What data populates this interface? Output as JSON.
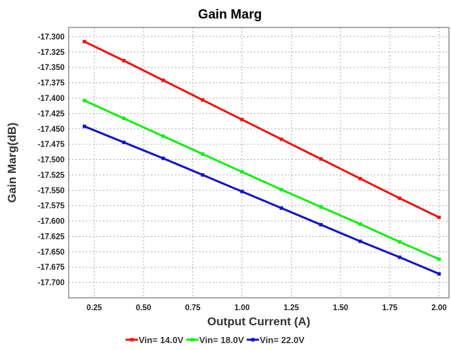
{
  "chart_data": {
    "type": "line",
    "title": "Gain Marg",
    "xlabel": "Output Current (A)",
    "ylabel": "Gain Marg(dB)",
    "xlim": [
      0.12,
      2.05
    ],
    "ylim": [
      -17.725,
      -17.285
    ],
    "x_ticks": [
      "0.25",
      "0.50",
      "0.75",
      "1.00",
      "1.25",
      "1.50",
      "1.75",
      "2.00"
    ],
    "y_ticks": [
      "-17.300",
      "-17.325",
      "-17.350",
      "-17.375",
      "-17.400",
      "-17.425",
      "-17.450",
      "-17.475",
      "-17.500",
      "-17.525",
      "-17.550",
      "-17.575",
      "-17.600",
      "-17.625",
      "-17.650",
      "-17.675",
      "-17.700"
    ],
    "x": [
      0.2,
      0.4,
      0.6,
      0.8,
      1.0,
      1.2,
      1.4,
      1.6,
      1.8,
      2.0
    ],
    "grid": true,
    "legend_position": "bottom-center",
    "series": [
      {
        "name": "Vin= 14.0V",
        "color": "#ee1111",
        "values": [
          -17.308,
          -17.339,
          -17.371,
          -17.403,
          -17.435,
          -17.467,
          -17.499,
          -17.531,
          -17.563,
          -17.594
        ]
      },
      {
        "name": "Vin= 18.0V",
        "color": "#11ee11",
        "values": [
          -17.404,
          -17.433,
          -17.462,
          -17.491,
          -17.52,
          -17.549,
          -17.577,
          -17.605,
          -17.634,
          -17.662
        ]
      },
      {
        "name": "Vin= 22.0V",
        "color": "#1111cc",
        "values": [
          -17.446,
          -17.472,
          -17.498,
          -17.525,
          -17.552,
          -17.579,
          -17.606,
          -17.633,
          -17.659,
          -17.686
        ]
      }
    ]
  }
}
